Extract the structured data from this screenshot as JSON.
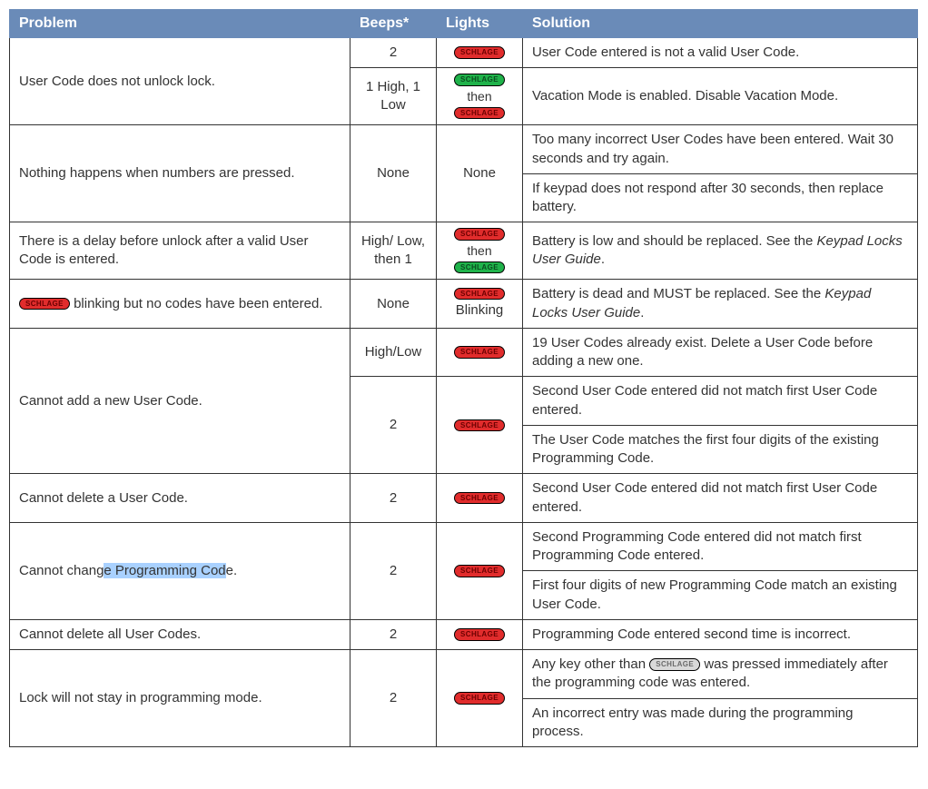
{
  "badge_text": "SCHLAGE",
  "colors": {
    "header_bg": "#6a8bb8",
    "header_fg": "#ffffff",
    "border": "#333333",
    "badge_red_bg": "#e12c2c",
    "badge_red_fg": "#6b0000",
    "badge_green_bg": "#1fb24a",
    "badge_green_fg": "#0a4b1f",
    "badge_grey_bg": "#d9d9d9",
    "badge_grey_fg": "#6a6a6a",
    "highlight": "#a9d1ff"
  },
  "headers": {
    "problem": "Problem",
    "beeps": "Beeps*",
    "lights": "Lights",
    "solution": "Solution"
  },
  "misc": {
    "then": "then",
    "blinking_suffix": " blinking but no codes have been entered.",
    "blinking_label": "Blinking",
    "keypress_prefix": "Any key other than ",
    "keypress_suffix": " was pressed immediately after the programming code was entered."
  },
  "rows": {
    "r1": {
      "problem": "User Code does not unlock lock.",
      "a_beeps": "2",
      "a_solution": "User Code entered is not a valid User Code.",
      "b_beeps": "1 High, 1 Low",
      "b_solution": "Vacation Mode is enabled. Disable Vacation Mode."
    },
    "r2": {
      "problem": "Nothing happens when numbers are pressed.",
      "beeps": "None",
      "lights": "None",
      "sol_a": "Too many incorrect User Codes have been entered. Wait 30 seconds and try again.",
      "sol_b": "If keypad does not respond after 30 seconds, then replace battery."
    },
    "r3": {
      "problem": "There is a delay before unlock after a valid User Code is entered.",
      "beeps": "High/\nLow, then 1",
      "sol_prefix": "Battery is low and should be replaced. See the ",
      "sol_italic": "Keypad Locks User Guide",
      "sol_suffix": "."
    },
    "r4": {
      "beeps": "None",
      "sol_prefix": "Battery is dead and MUST be replaced. See the ",
      "sol_italic": "Keypad Locks User Guide",
      "sol_suffix": "."
    },
    "r5": {
      "problem": "Cannot add a new User Code.",
      "a_beeps": "High/Low",
      "a_solution": "19 User Codes already exist. Delete a User Code before adding a new one.",
      "b_beeps": "2",
      "b_sol1": "Second User Code entered did not match first User Code entered.",
      "b_sol2": "The User Code matches the first four digits of the existing Programming Code."
    },
    "r6": {
      "problem": "Cannot delete a User Code.",
      "beeps": "2",
      "solution": "Second User Code entered did not match first User Code entered."
    },
    "r7": {
      "problem_pre": "Cannot chang",
      "problem_hl": "e Programming Cod",
      "problem_post": "e.",
      "beeps": "2",
      "sol_a": "Second Programming Code entered did not match first Programming Code entered.",
      "sol_b": "First four digits of new Programming Code match an existing User Code."
    },
    "r8": {
      "problem": "Cannot delete all User Codes.",
      "beeps": "2",
      "solution": "Programming Code entered second time is incorrect."
    },
    "r9": {
      "problem": "Lock will not stay in programming mode.",
      "beeps": "2",
      "sol_b": "An incorrect entry was made during the programming process."
    }
  }
}
